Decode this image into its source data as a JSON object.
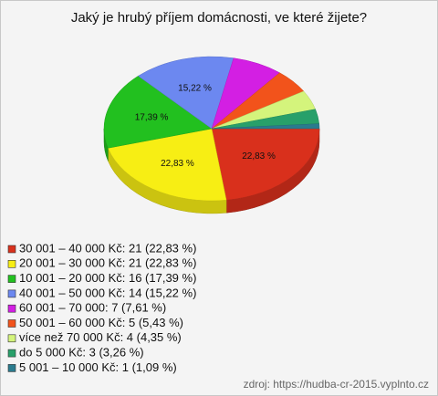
{
  "chart_data": {
    "type": "pie",
    "title": "Jaký je hrubý příjem domácnosti, ve které žijete?",
    "categories": [
      "30 001 – 40 000 Kč: 21 (22,83 %)",
      "20 001 – 30 000 Kč: 21 (22,83 %)",
      "10 001 – 20 000 Kč: 16 (17,39 %)",
      "40 001 – 50 000 Kč: 14 (15,22 %)",
      "60 001 – 70 000: 7 (7,61 %)",
      "50 001 – 60 000 Kč: 5 (5,43 %)",
      "více než 70 000 Kč: 4 (4,35 %)",
      "do 5 000 Kč: 3 (3,26 %)",
      "5 001 – 10 000 Kč: 1 (1,09 %)"
    ],
    "values": [
      22.83,
      22.83,
      17.39,
      15.22,
      7.61,
      5.43,
      4.35,
      3.26,
      1.09
    ],
    "value_labels": [
      "22,83 %",
      "22,83 %",
      "17,39 %",
      "15,22 %",
      null,
      null,
      null,
      null,
      null
    ],
    "colors": [
      "#d9301c",
      "#f7ee14",
      "#22c01f",
      "#6c88f0",
      "#d31fe3",
      "#f2531b",
      "#d4f47c",
      "#28a06a",
      "#2a7b8e"
    ],
    "source": "zdroj: https://hudba-cr-2015.vyplnto.cz"
  }
}
